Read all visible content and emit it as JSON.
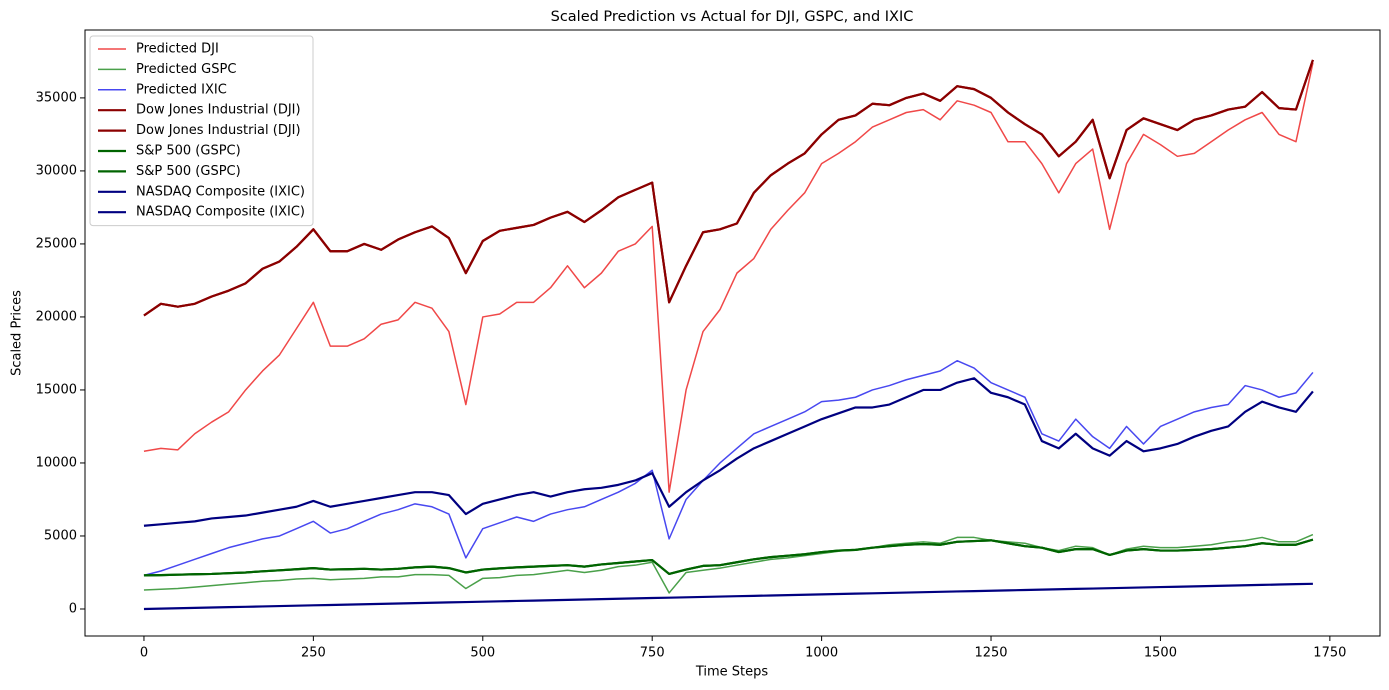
{
  "chart_data": {
    "type": "line",
    "title": "Scaled Prediction vs Actual for DJI, GSPC, and IXIC",
    "x_label": "Time Steps",
    "y_label": "Scaled Prices",
    "x": [
      0,
      25,
      50,
      75,
      100,
      125,
      150,
      175,
      200,
      225,
      250,
      275,
      300,
      325,
      350,
      375,
      400,
      425,
      450,
      475,
      500,
      525,
      550,
      575,
      600,
      625,
      650,
      675,
      700,
      725,
      750,
      775,
      800,
      825,
      850,
      875,
      900,
      925,
      950,
      975,
      1000,
      1025,
      1050,
      1075,
      1100,
      1125,
      1150,
      1175,
      1200,
      1225,
      1250,
      1275,
      1300,
      1325,
      1350,
      1375,
      1400,
      1425,
      1450,
      1475,
      1500,
      1525,
      1550,
      1575,
      1600,
      1625,
      1650,
      1675,
      1700,
      1725
    ],
    "xlim": [
      -87,
      1824
    ],
    "xticks": [
      0,
      250,
      500,
      750,
      1000,
      1250,
      1500,
      1750
    ],
    "ylim": [
      -1850,
      39650
    ],
    "yticks": [
      0,
      5000,
      10000,
      15000,
      20000,
      25000,
      30000,
      35000
    ],
    "grid": false,
    "legend": "upper-left",
    "series": [
      {
        "name": "Predicted DJI",
        "color": "#f04848",
        "width": 1.5,
        "values": [
          10800,
          11000,
          10900,
          12000,
          12800,
          13500,
          15000,
          16300,
          17400,
          19200,
          21000,
          18000,
          18000,
          18500,
          19500,
          19800,
          21000,
          20600,
          19000,
          14000,
          20000,
          20200,
          21000,
          21000,
          22000,
          23500,
          22000,
          23000,
          24500,
          25000,
          26200,
          8000,
          15000,
          19000,
          20500,
          23000,
          24000,
          26000,
          27300,
          28500,
          30500,
          31200,
          32000,
          33000,
          33500,
          34000,
          34200,
          33500,
          34800,
          34500,
          34000,
          32000,
          32000,
          30500,
          28500,
          30500,
          31500,
          26000,
          30500,
          32500,
          31800,
          31000,
          31200,
          32000,
          32800,
          33500,
          34000,
          32500,
          32000,
          37400
        ]
      },
      {
        "name": "Predicted GSPC",
        "color": "#4aa04a",
        "width": 1.5,
        "values": [
          1300,
          1350,
          1400,
          1500,
          1600,
          1700,
          1800,
          1900,
          1950,
          2050,
          2100,
          2000,
          2050,
          2100,
          2200,
          2200,
          2350,
          2350,
          2300,
          1400,
          2100,
          2150,
          2300,
          2350,
          2500,
          2650,
          2500,
          2650,
          2900,
          3000,
          3200,
          1100,
          2500,
          2650,
          2800,
          3000,
          3200,
          3400,
          3500,
          3650,
          3800,
          3950,
          4050,
          4200,
          4400,
          4500,
          4600,
          4500,
          4900,
          4900,
          4700,
          4600,
          4500,
          4200,
          4000,
          4300,
          4200,
          3700,
          4100,
          4300,
          4200,
          4200,
          4300,
          4400,
          4600,
          4700,
          4900,
          4600,
          4600,
          5100
        ]
      },
      {
        "name": "Predicted IXIC",
        "color": "#4848f0",
        "width": 1.5,
        "values": [
          2300,
          2600,
          3000,
          3400,
          3800,
          4200,
          4500,
          4800,
          5000,
          5500,
          6000,
          5200,
          5500,
          6000,
          6500,
          6800,
          7200,
          7000,
          6500,
          3500,
          5500,
          5900,
          6300,
          6000,
          6500,
          6800,
          7000,
          7500,
          8000,
          8600,
          9500,
          4800,
          7500,
          8800,
          10000,
          11000,
          12000,
          12500,
          13000,
          13500,
          14200,
          14300,
          14500,
          15000,
          15300,
          15700,
          16000,
          16300,
          17000,
          16500,
          15500,
          15000,
          14500,
          12000,
          11500,
          13000,
          11800,
          11000,
          12500,
          11300,
          12500,
          13000,
          13500,
          13800,
          14000,
          15300,
          15000,
          14500,
          14800,
          16200
        ]
      },
      {
        "name": "Dow Jones Industrial (DJI)",
        "color": "#8b0000",
        "width": 2.2,
        "values": [
          20100,
          20900,
          20700,
          20900,
          21400,
          21800,
          22300,
          23300,
          23800,
          24800,
          26000,
          24500,
          24500,
          25000,
          24600,
          25300,
          25800,
          26200,
          25400,
          23000,
          25200,
          25900,
          26100,
          26300,
          26800,
          27200,
          26500,
          27300,
          28200,
          28700,
          29200,
          21000,
          23500,
          25800,
          26000,
          26400,
          28500,
          29700,
          30500,
          31200,
          32500,
          33500,
          33800,
          34600,
          34500,
          35000,
          35300,
          34800,
          35800,
          35600,
          35000,
          34000,
          33200,
          32500,
          31000,
          32000,
          33500,
          29500,
          32800,
          33600,
          33200,
          32800,
          33500,
          33800,
          34200,
          34400,
          35400,
          34300,
          34200,
          37600
        ]
      },
      {
        "name": "Dow Jones Industrial (DJI)",
        "color": "#8b0000",
        "width": 2.2,
        "values": [
          20100,
          20900,
          20700,
          20900,
          21400,
          21800,
          22300,
          23300,
          23800,
          24800,
          26000,
          24500,
          24500,
          25000,
          24600,
          25300,
          25800,
          26200,
          25400,
          23000,
          25200,
          25900,
          26100,
          26300,
          26800,
          27200,
          26500,
          27300,
          28200,
          28700,
          29200,
          21000,
          23500,
          25800,
          26000,
          26400,
          28500,
          29700,
          30500,
          31200,
          32500,
          33500,
          33800,
          34600,
          34500,
          35000,
          35300,
          34800,
          35800,
          35600,
          35000,
          34000,
          33200,
          32500,
          31000,
          32000,
          33500,
          29500,
          32800,
          33600,
          33200,
          32800,
          33500,
          33800,
          34200,
          34400,
          35400,
          34300,
          34200,
          37600
        ]
      },
      {
        "name": "S&P 500 (GSPC)",
        "color": "#006400",
        "width": 2.2,
        "values": [
          2300,
          2320,
          2350,
          2380,
          2400,
          2450,
          2500,
          2580,
          2650,
          2720,
          2800,
          2700,
          2720,
          2750,
          2700,
          2750,
          2850,
          2900,
          2800,
          2500,
          2700,
          2780,
          2850,
          2900,
          2950,
          3000,
          2900,
          3050,
          3150,
          3250,
          3350,
          2400,
          2700,
          2950,
          3000,
          3200,
          3400,
          3550,
          3650,
          3750,
          3900,
          4000,
          4050,
          4200,
          4300,
          4400,
          4450,
          4400,
          4600,
          4650,
          4700,
          4500,
          4300,
          4200,
          3900,
          4100,
          4100,
          3700,
          4000,
          4100,
          4000,
          4000,
          4050,
          4100,
          4200,
          4300,
          4500,
          4400,
          4400,
          4750
        ]
      },
      {
        "name": "S&P 500 (GSPC)",
        "color": "#006400",
        "width": 2.2,
        "values": [
          2300,
          2320,
          2350,
          2380,
          2400,
          2450,
          2500,
          2580,
          2650,
          2720,
          2800,
          2700,
          2720,
          2750,
          2700,
          2750,
          2850,
          2900,
          2800,
          2500,
          2700,
          2780,
          2850,
          2900,
          2950,
          3000,
          2900,
          3050,
          3150,
          3250,
          3350,
          2400,
          2700,
          2950,
          3000,
          3200,
          3400,
          3550,
          3650,
          3750,
          3900,
          4000,
          4050,
          4200,
          4300,
          4400,
          4450,
          4400,
          4600,
          4650,
          4700,
          4500,
          4300,
          4200,
          3900,
          4100,
          4100,
          3700,
          4000,
          4100,
          4000,
          4000,
          4050,
          4100,
          4200,
          4300,
          4500,
          4400,
          4400,
          4750
        ]
      },
      {
        "name": "NASDAQ Composite (IXIC)",
        "color": "#000080",
        "width": 2.2,
        "values": [
          5700,
          5800,
          5900,
          6000,
          6200,
          6300,
          6400,
          6600,
          6800,
          7000,
          7400,
          7000,
          7200,
          7400,
          7600,
          7800,
          8000,
          8000,
          7800,
          6500,
          7200,
          7500,
          7800,
          8000,
          7700,
          8000,
          8200,
          8300,
          8500,
          8800,
          9300,
          7000,
          8000,
          8800,
          9500,
          10300,
          11000,
          11500,
          12000,
          12500,
          13000,
          13400,
          13800,
          13800,
          14000,
          14500,
          15000,
          15000,
          15500,
          15800,
          14800,
          14500,
          14000,
          11500,
          11000,
          12000,
          11000,
          10500,
          11500,
          10800,
          11000,
          11300,
          11800,
          12200,
          12500,
          13500,
          14200,
          13800,
          13500,
          14900
        ]
      },
      {
        "name": "NASDAQ Composite (IXIC)",
        "color": "#000080",
        "width": 2.2,
        "values": [
          0,
          25,
          50,
          75,
          100,
          125,
          150,
          175,
          200,
          225,
          250,
          275,
          300,
          325,
          350,
          375,
          400,
          425,
          450,
          475,
          500,
          525,
          550,
          575,
          600,
          625,
          650,
          675,
          700,
          725,
          750,
          775,
          800,
          825,
          850,
          875,
          900,
          925,
          950,
          975,
          1000,
          1025,
          1050,
          1075,
          1100,
          1125,
          1150,
          1175,
          1200,
          1225,
          1250,
          1275,
          1300,
          1325,
          1350,
          1375,
          1400,
          1425,
          1450,
          1475,
          1500,
          1525,
          1550,
          1575,
          1600,
          1625,
          1650,
          1675,
          1700,
          1725
        ]
      }
    ]
  }
}
